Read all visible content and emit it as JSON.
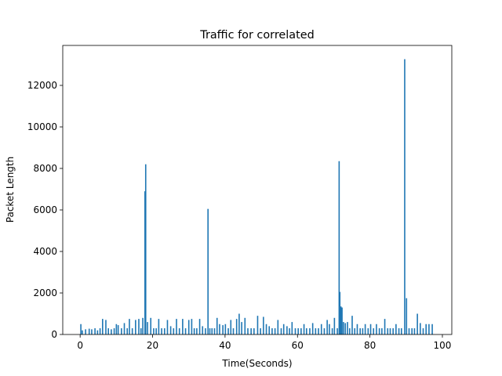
{
  "chart_data": {
    "type": "bar",
    "title": "Traffic for correlated",
    "x_label": "Time(Seconds)",
    "y_label": "Packet Length",
    "color": "#1f77b4",
    "x": [
      0.2,
      0.6,
      1.5,
      2.5,
      3.2,
      4.1,
      4.8,
      5.5,
      6.2,
      7.1,
      7.8,
      8.6,
      9.4,
      10.0,
      10.5,
      11.4,
      12.2,
      13.0,
      13.6,
      14.4,
      15.3,
      16.2,
      16.8,
      17.3,
      17.9,
      18.1,
      18.6,
      19.5,
      20.3,
      21.0,
      21.7,
      22.5,
      23.3,
      24.1,
      25.0,
      25.8,
      26.6,
      27.4,
      28.3,
      29.1,
      30.0,
      30.8,
      31.5,
      32.2,
      33.0,
      33.8,
      34.6,
      35.3,
      35.8,
      36.4,
      37.1,
      37.8,
      38.5,
      39.4,
      40.1,
      40.9,
      41.6,
      42.3,
      43.2,
      43.9,
      44.6,
      45.5,
      46.3,
      47.2,
      48.0,
      49.0,
      49.8,
      50.6,
      51.4,
      52.2,
      53.0,
      53.8,
      54.6,
      55.5,
      56.2,
      57.1,
      57.8,
      58.5,
      59.4,
      60.2,
      61.0,
      61.8,
      62.5,
      63.4,
      64.2,
      65.0,
      65.8,
      66.6,
      67.4,
      68.2,
      68.8,
      69.6,
      70.2,
      71.0,
      71.5,
      71.7,
      72.0,
      72.3,
      72.7,
      73.2,
      73.8,
      74.4,
      75.1,
      75.8,
      76.5,
      77.3,
      78.0,
      78.7,
      79.5,
      80.2,
      81.0,
      81.8,
      82.6,
      83.3,
      84.1,
      84.9,
      85.6,
      86.4,
      87.2,
      88.0,
      88.7,
      89.6,
      90.1,
      90.8,
      91.6,
      92.3,
      93.1,
      93.9,
      94.7,
      95.5,
      96.3,
      97.2
    ],
    "values": [
      500,
      200,
      250,
      280,
      250,
      300,
      200,
      300,
      750,
      700,
      300,
      250,
      300,
      500,
      450,
      300,
      550,
      300,
      750,
      300,
      700,
      750,
      300,
      800,
      6900,
      8200,
      600,
      800,
      300,
      300,
      750,
      300,
      300,
      700,
      400,
      300,
      750,
      300,
      750,
      300,
      700,
      750,
      300,
      300,
      750,
      400,
      300,
      6050,
      300,
      300,
      300,
      800,
      500,
      450,
      500,
      300,
      700,
      300,
      750,
      1000,
      600,
      800,
      300,
      300,
      300,
      900,
      300,
      850,
      500,
      400,
      300,
      300,
      700,
      300,
      500,
      400,
      300,
      600,
      300,
      300,
      300,
      500,
      300,
      300,
      550,
      300,
      300,
      500,
      300,
      700,
      500,
      300,
      800,
      300,
      8350,
      2050,
      1350,
      1300,
      600,
      550,
      600,
      300,
      900,
      300,
      500,
      300,
      300,
      500,
      300,
      500,
      300,
      500,
      300,
      300,
      750,
      300,
      300,
      300,
      500,
      300,
      300,
      13262,
      1750,
      300,
      300,
      300,
      1000,
      550,
      300,
      500,
      500,
      500
    ],
    "xlim": [
      -4.8,
      102.6
    ],
    "ylim": [
      0,
      13925
    ],
    "xticks": [
      0,
      20,
      40,
      60,
      80,
      100
    ],
    "yticks": [
      0,
      2000,
      4000,
      6000,
      8000,
      10000,
      12000
    ]
  }
}
